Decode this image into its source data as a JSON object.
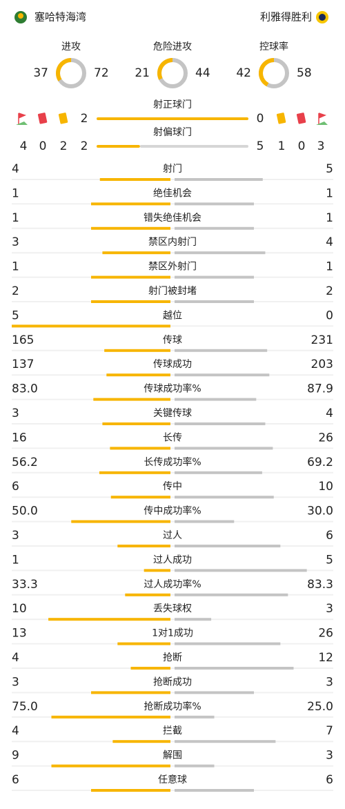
{
  "header": {
    "home": "塞哈特海湾",
    "away": "利雅得胜利"
  },
  "summary": [
    {
      "label": "进攻",
      "home": 37,
      "away": 72
    },
    {
      "label": "危险进攻",
      "home": 21,
      "away": 44
    },
    {
      "label": "控球率",
      "home": 42,
      "away": 58
    }
  ],
  "shots": [
    {
      "label": "射正球门",
      "home": 2,
      "away": 0
    },
    {
      "label": "射偏球门",
      "home": 2,
      "away": 5
    }
  ],
  "discipline": {
    "home": {
      "corners": 4,
      "red": 0,
      "yellow": 2
    },
    "away": {
      "yellow": 1,
      "red": 0,
      "corners": 3
    }
  },
  "stats": [
    {
      "label": "射门",
      "home": "4",
      "away": "5"
    },
    {
      "label": "绝佳机会",
      "home": "1",
      "away": "1"
    },
    {
      "label": "错失绝佳机会",
      "home": "1",
      "away": "1"
    },
    {
      "label": "禁区内射门",
      "home": "3",
      "away": "4"
    },
    {
      "label": "禁区外射门",
      "home": "1",
      "away": "1"
    },
    {
      "label": "射门被封堵",
      "home": "2",
      "away": "2"
    },
    {
      "label": "越位",
      "home": "5",
      "away": "0"
    },
    {
      "label": "传球",
      "home": "165",
      "away": "231"
    },
    {
      "label": "传球成功",
      "home": "137",
      "away": "203"
    },
    {
      "label": "传球成功率%",
      "home": "83.0",
      "away": "87.9"
    },
    {
      "label": "关键传球",
      "home": "3",
      "away": "4"
    },
    {
      "label": "长传",
      "home": "16",
      "away": "26"
    },
    {
      "label": "长传成功率%",
      "home": "56.2",
      "away": "69.2"
    },
    {
      "label": "传中",
      "home": "6",
      "away": "10"
    },
    {
      "label": "传中成功率%",
      "home": "50.0",
      "away": "30.0"
    },
    {
      "label": "过人",
      "home": "3",
      "away": "6"
    },
    {
      "label": "过人成功",
      "home": "1",
      "away": "5"
    },
    {
      "label": "过人成功率%",
      "home": "33.3",
      "away": "83.3"
    },
    {
      "label": "丢失球权",
      "home": "10",
      "away": "3"
    },
    {
      "label": "1对1成功",
      "home": "13",
      "away": "26"
    },
    {
      "label": "抢断",
      "home": "4",
      "away": "12"
    },
    {
      "label": "抢断成功",
      "home": "3",
      "away": "3"
    },
    {
      "label": "抢断成功率%",
      "home": "75.0",
      "away": "25.0"
    },
    {
      "label": "拦截",
      "home": "4",
      "away": "7"
    },
    {
      "label": "解围",
      "home": "9",
      "away": "3"
    },
    {
      "label": "任意球",
      "home": "6",
      "away": "6"
    }
  ]
}
